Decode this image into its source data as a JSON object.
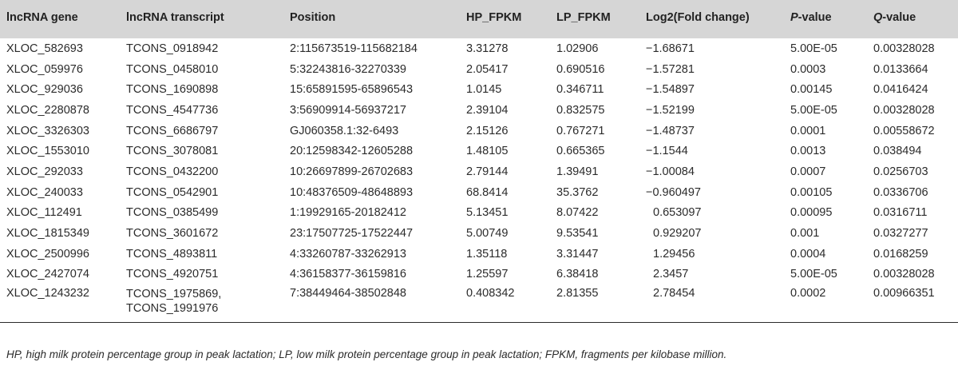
{
  "table": {
    "headers": [
      {
        "text": "lncRNA gene",
        "italic_prefix": "",
        "suffix": ""
      },
      {
        "text": "lncRNA transcript",
        "italic_prefix": "",
        "suffix": ""
      },
      {
        "text": "Position",
        "italic_prefix": "",
        "suffix": ""
      },
      {
        "text": "HP_FPKM",
        "italic_prefix": "",
        "suffix": ""
      },
      {
        "text": "LP_FPKM",
        "italic_prefix": "",
        "suffix": ""
      },
      {
        "text": "Log2(Fold change)",
        "italic_prefix": "",
        "suffix": ""
      },
      {
        "text": "",
        "italic_prefix": "P",
        "suffix": "-value"
      },
      {
        "text": "",
        "italic_prefix": "Q",
        "suffix": "-value"
      }
    ],
    "rows": [
      [
        "XLOC_582693",
        "TCONS_0918942",
        "2:115673519-115682184",
        "3.31278",
        "1.02906",
        "−1.68671",
        "5.00E-05",
        "0.00328028"
      ],
      [
        "XLOC_059976",
        "TCONS_0458010",
        "5:32243816-32270339",
        "2.05417",
        "0.690516",
        "−1.57281",
        "0.0003",
        "0.0133664"
      ],
      [
        "XLOC_929036",
        "TCONS_1690898",
        "15:65891595-65896543",
        "1.0145",
        "0.346711",
        "−1.54897",
        "0.00145",
        "0.0416424"
      ],
      [
        "XLOC_2280878",
        "TCONS_4547736",
        "3:56909914-56937217",
        "2.39104",
        "0.832575",
        "−1.52199",
        "5.00E-05",
        "0.00328028"
      ],
      [
        "XLOC_3326303",
        "TCONS_6686797",
        "GJ060358.1:32-6493",
        "2.15126",
        "0.767271",
        "−1.48737",
        "0.0001",
        "0.00558672"
      ],
      [
        "XLOC_1553010",
        "TCONS_3078081",
        "20:12598342-12605288",
        "1.48105",
        "0.665365",
        "−1.1544",
        "0.0013",
        "0.038494"
      ],
      [
        "XLOC_292033",
        "TCONS_0432200",
        "10:26697899-26702683",
        "2.79144",
        "1.39491",
        "−1.00084",
        "0.0007",
        "0.0256703"
      ],
      [
        "XLOC_240033",
        "TCONS_0542901",
        "10:48376509-48648893",
        "68.8414",
        "35.3762",
        "−0.960497",
        "0.00105",
        "0.0336706"
      ],
      [
        "XLOC_112491",
        "TCONS_0385499",
        "1:19929165-20182412",
        "5.13451",
        "8.07422",
        "0.653097",
        "0.00095",
        "0.0316711"
      ],
      [
        "XLOC_1815349",
        "TCONS_3601672",
        "23:17507725-17522447",
        "5.00749",
        "9.53541",
        "0.929207",
        "0.001",
        "0.0327277"
      ],
      [
        "XLOC_2500996",
        "TCONS_4893811",
        "4:33260787-33262913",
        "1.35118",
        "3.31447",
        "1.29456",
        "0.0004",
        "0.0168259"
      ],
      [
        "XLOC_2427074",
        "TCONS_4920751",
        "4:36158377-36159816",
        "1.25597",
        "6.38418",
        "2.3457",
        "5.00E-05",
        "0.00328028"
      ],
      [
        "XLOC_1243232",
        "TCONS_1975869,\nTCONS_1991976",
        "7:38449464-38502848",
        "0.408342",
        "2.81355",
        "2.78454",
        "0.0002",
        "0.00966351"
      ]
    ]
  },
  "footnote": "HP, high milk protein percentage group in peak lactation; LP, low milk protein percentage group in peak lactation; FPKM, fragments per kilobase million."
}
